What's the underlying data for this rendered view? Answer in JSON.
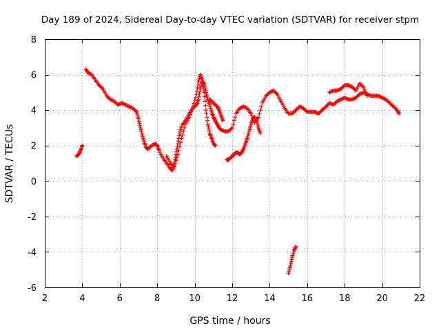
{
  "chart_data": {
    "type": "scatter",
    "title": "Day 189 of 2024, Sidereal Day-to-day VTEC variation (SDTVAR) for receiver stpm",
    "xlabel": "GPS time / hours",
    "ylabel": "SDTVAR / TECUs",
    "xlim": [
      2,
      22
    ],
    "ylim": [
      -6,
      8
    ],
    "xticks": [
      2,
      4,
      6,
      8,
      10,
      12,
      14,
      16,
      18,
      20,
      22
    ],
    "yticks": [
      -6,
      -4,
      -2,
      0,
      2,
      4,
      6,
      8
    ],
    "grid": true,
    "marker": "+",
    "series": [
      {
        "name": "stpm",
        "color": "#ff0000",
        "segments": [
          {
            "x": [
              3.7,
              3.8,
              3.9,
              4.0
            ],
            "y": [
              1.4,
              1.5,
              1.7,
              2.0
            ]
          },
          {
            "x": [
              4.2,
              4.3,
              4.5,
              4.7,
              4.9,
              5.1,
              5.3,
              5.5,
              5.7,
              5.9,
              6.1,
              6.3,
              6.5,
              6.7,
              6.9,
              7.0,
              7.1,
              7.2,
              7.3,
              7.4,
              7.5,
              7.7,
              7.9,
              8.0,
              8.1,
              8.3,
              8.5,
              8.7,
              8.8,
              8.9,
              9.0,
              9.1,
              9.2,
              9.3,
              9.5,
              9.7,
              9.9,
              10.1,
              10.2,
              10.3,
              10.4,
              10.5,
              10.6,
              10.7,
              10.8,
              10.9,
              11.0,
              11.1,
              11.2,
              11.3,
              11.4,
              11.6,
              11.8,
              12.0,
              12.2,
              12.4,
              12.6,
              12.8,
              13.0,
              13.2,
              13.4,
              13.6,
              13.8,
              14.0,
              14.2,
              14.4,
              14.6,
              14.8,
              15.0,
              15.2,
              15.4,
              15.6,
              15.8,
              16.0,
              16.2,
              16.4,
              16.6,
              16.8,
              17.0,
              17.2,
              17.4,
              17.6,
              17.8,
              18.0,
              18.2,
              18.4,
              18.6,
              18.8,
              19.0,
              19.2,
              19.4,
              19.6,
              19.8,
              20.0,
              20.2,
              20.4,
              20.6,
              20.8,
              20.9
            ],
            "y": [
              6.3,
              6.1,
              6.0,
              5.7,
              5.4,
              5.2,
              4.8,
              4.6,
              4.5,
              4.3,
              4.4,
              4.3,
              4.2,
              4.1,
              3.9,
              3.5,
              3.0,
              2.6,
              2.2,
              1.9,
              1.8,
              2.0,
              2.1,
              2.0,
              1.7,
              1.3,
              1.0,
              0.7,
              0.6,
              0.9,
              1.5,
              2.1,
              2.7,
              3.1,
              3.4,
              3.8,
              4.1,
              4.3,
              4.6,
              5.2,
              5.6,
              5.5,
              5.0,
              4.6,
              4.3,
              3.9,
              3.6,
              3.4,
              3.2,
              3.0,
              2.9,
              2.8,
              2.8,
              3.0,
              3.8,
              4.1,
              4.2,
              4.1,
              3.8,
              3.3,
              3.6,
              4.4,
              4.8,
              5.0,
              5.1,
              4.9,
              4.5,
              4.1,
              3.8,
              3.8,
              4.0,
              4.2,
              4.1,
              3.9,
              3.9,
              3.9,
              3.8,
              4.0,
              4.2,
              4.4,
              4.3,
              4.5,
              4.6,
              4.7,
              4.6,
              4.6,
              4.7,
              4.9,
              5.0,
              4.9,
              4.8,
              4.8,
              4.8,
              4.7,
              4.6,
              4.4,
              4.2,
              4.0,
              3.8
            ]
          },
          {
            "x": [
              8.5,
              8.7,
              8.9,
              9.1,
              9.3,
              9.5,
              9.7,
              9.9,
              10.1,
              10.2,
              10.3,
              10.4,
              10.5,
              10.6,
              10.7,
              10.8,
              10.9,
              11.0,
              11.1
            ],
            "y": [
              1.4,
              1.0,
              0.8,
              1.5,
              2.4,
              3.2,
              3.6,
              4.2,
              4.9,
              5.6,
              6.0,
              5.7,
              5.0,
              4.0,
              3.2,
              2.7,
              2.4,
              2.1,
              2.0
            ]
          },
          {
            "x": [
              10.8,
              10.9,
              11.0,
              11.1,
              11.2,
              11.3,
              11.4,
              11.5
            ],
            "y": [
              4.6,
              4.5,
              4.4,
              4.3,
              4.2,
              4.0,
              3.7,
              3.4
            ]
          },
          {
            "x": [
              11.7,
              11.8,
              11.9,
              12.0,
              12.1,
              12.2,
              12.3,
              12.4,
              12.5,
              12.6,
              12.7,
              12.8,
              12.9,
              13.0,
              13.1,
              13.2,
              13.3,
              13.4,
              13.5
            ],
            "y": [
              1.2,
              1.2,
              1.3,
              1.4,
              1.5,
              1.6,
              1.6,
              1.5,
              1.6,
              1.8,
              2.1,
              2.4,
              2.8,
              3.2,
              3.5,
              3.6,
              3.4,
              3.0,
              2.7
            ]
          },
          {
            "x": [
              17.2,
              17.4,
              17.6,
              17.8,
              18.0,
              18.2,
              18.4,
              18.6,
              18.8,
              19.0,
              19.2
            ],
            "y": [
              5.0,
              5.1,
              5.1,
              5.2,
              5.4,
              5.4,
              5.3,
              5.1,
              5.5,
              5.3,
              4.8
            ]
          },
          {
            "x": [
              15.0,
              15.1,
              15.2,
              15.3,
              15.4
            ],
            "y": [
              -5.2,
              -4.8,
              -4.3,
              -3.9,
              -3.7
            ]
          }
        ]
      }
    ]
  }
}
